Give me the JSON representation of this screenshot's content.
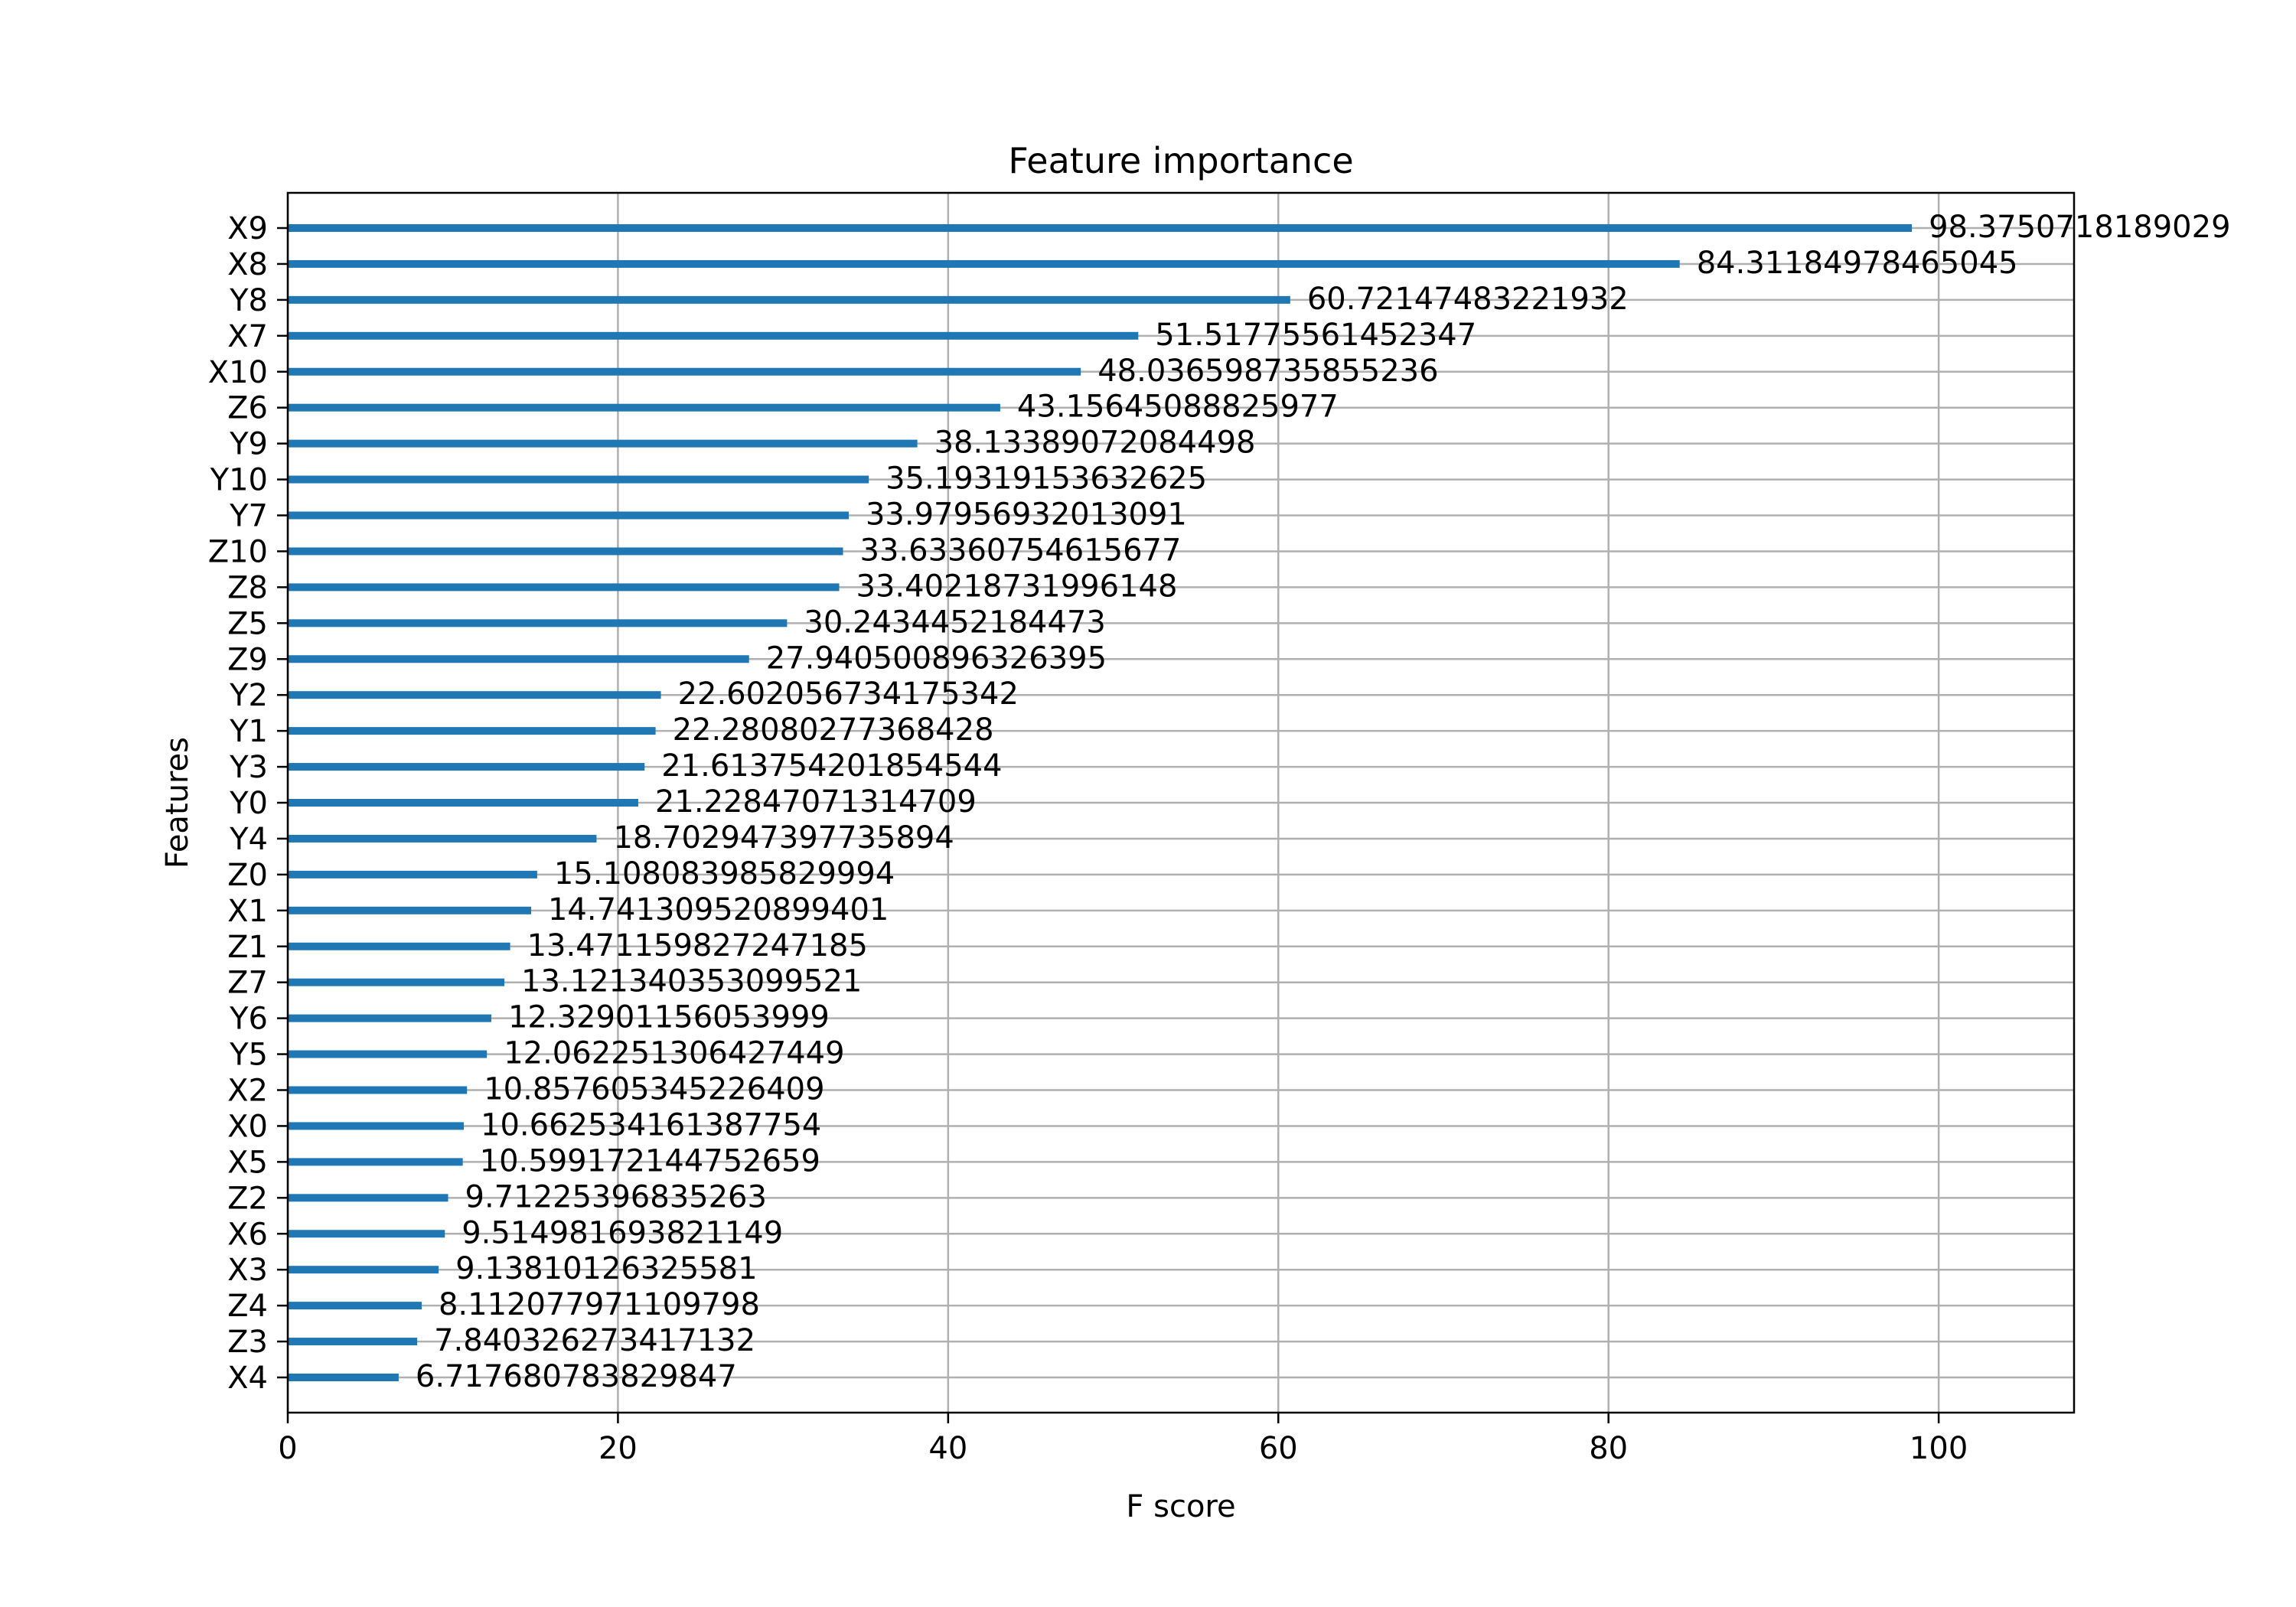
{
  "chart_data": {
    "type": "bar",
    "orientation": "horizontal",
    "title": "Feature importance",
    "xlabel": "F score",
    "ylabel": "Features",
    "xlim": [
      0,
      108.2
    ],
    "xticks": [
      0,
      20,
      40,
      60,
      80,
      100
    ],
    "grid": true,
    "bar_color": "#1f77b4",
    "categories": [
      "X9",
      "X8",
      "Y8",
      "X7",
      "X10",
      "Z6",
      "Y9",
      "Y10",
      "Y7",
      "Z10",
      "Z8",
      "Z5",
      "Z9",
      "Y2",
      "Y1",
      "Y3",
      "Y0",
      "Y4",
      "Z0",
      "X1",
      "Z1",
      "Z7",
      "Y6",
      "Y5",
      "X2",
      "X0",
      "X5",
      "Z2",
      "X6",
      "X3",
      "Z4",
      "Z3",
      "X4"
    ],
    "values": [
      98.3750718189029,
      84.31184978465045,
      60.72147483221932,
      51.51775561452347,
      48.036598735855236,
      43.15645088825977,
      38.13389072084498,
      35.19319153632625,
      33.97956932013091,
      33.63360754615677,
      33.40218731996148,
      30.2434452184473,
      27.940500896326395,
      22.602056734175342,
      22.28080277368428,
      21.613754201854544,
      21.22847071314709,
      18.702947397735894,
      15.108083985829994,
      14.741309520899401,
      13.471159827247185,
      13.121340353099521,
      12.32901156053999,
      12.062251306427449,
      10.857605345226409,
      10.662534161387754,
      10.599172144752659,
      9.71225396835263,
      9.514981693821149,
      9.13810126325581,
      8.112077971109798,
      7.840326273417132,
      6.717680783829847
    ],
    "value_labels": [
      "98.3750718189029",
      "84.31184978465045",
      "60.72147483221932",
      "51.51775561452347",
      "48.036598735855236",
      "43.15645088825977",
      "38.13389072084498",
      "35.19319153632625",
      "33.97956932013091",
      "33.63360754615677",
      "33.40218731996148",
      "30.2434452184473",
      "27.940500896326395",
      "22.602056734175342",
      "22.28080277368428",
      "21.613754201854544",
      "21.22847071314709",
      "18.702947397735894",
      "15.108083985829994",
      "14.741309520899401",
      "13.471159827247185",
      "13.121340353099521",
      "12.32901156053999",
      "12.062251306427449",
      "10.857605345226409",
      "10.662534161387754",
      "10.599172144752659",
      "9.71225396835263",
      "9.514981693821149",
      "9.13810126325581",
      "8.112077971109798",
      "7.840326273417132",
      "6.717680783829847"
    ]
  }
}
